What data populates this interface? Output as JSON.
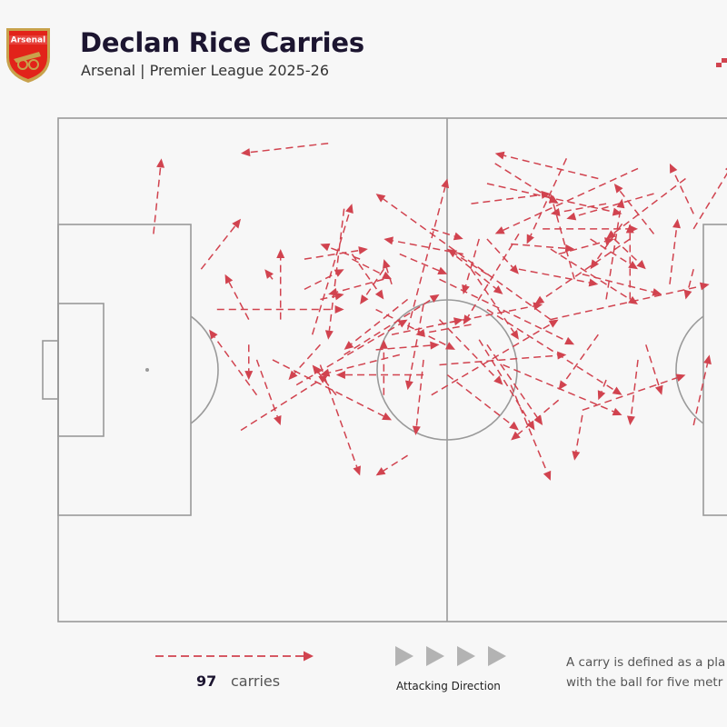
{
  "header": {
    "title": "Declan Rice Carries",
    "subtitle": "Arsenal | Premier League 2025-26",
    "crest_text": "Arsenal"
  },
  "colors": {
    "carry": "#d1434f",
    "pitch_lines": "#9a9a9a",
    "background": "#f7f7f7",
    "arrows": "#b3b3b3",
    "crest_red": "#e2231a",
    "crest_gold": "#c8a24c"
  },
  "legend": {
    "carry_count": "97",
    "carry_label": "carries",
    "direction_label": "Attacking Direction",
    "footnote_line1": "A carry is defined as a pla",
    "footnote_line2": "with the ball for five metr"
  },
  "chart_data": {
    "type": "arrow-map",
    "pitch": {
      "length": 100,
      "width": 100,
      "length_shown": 87
    },
    "carries": [
      [
        12,
        23,
        13,
        8
      ],
      [
        34,
        5,
        23,
        7
      ],
      [
        44,
        42,
        49,
        12
      ],
      [
        32,
        43,
        37,
        17
      ],
      [
        65,
        32,
        62,
        15
      ],
      [
        80,
        19,
        77,
        9
      ],
      [
        52,
        17,
        62,
        15
      ],
      [
        62,
        40,
        40,
        15
      ],
      [
        38,
        28,
        33,
        25
      ],
      [
        33,
        36,
        36,
        35
      ],
      [
        31,
        34,
        36,
        30
      ],
      [
        41,
        30,
        38,
        37
      ],
      [
        37,
        28,
        42,
        32
      ],
      [
        20,
        38,
        36,
        38
      ],
      [
        18,
        30,
        23,
        20
      ],
      [
        25,
        55,
        19,
        42
      ],
      [
        24,
        45,
        24,
        52
      ],
      [
        23,
        62,
        34,
        51
      ],
      [
        27,
        48,
        42,
        60
      ],
      [
        41,
        55,
        41,
        44
      ],
      [
        40,
        38,
        50,
        46
      ],
      [
        46,
        48,
        45,
        63
      ],
      [
        46,
        37,
        44,
        54
      ],
      [
        47,
        55,
        63,
        40
      ],
      [
        58,
        30,
        68,
        33
      ],
      [
        61,
        22,
        73,
        22
      ],
      [
        68,
        12,
        55,
        7
      ],
      [
        69,
        17,
        62,
        19
      ],
      [
        75,
        15,
        64,
        20
      ],
      [
        73,
        10,
        55,
        23
      ],
      [
        79,
        12,
        69,
        24
      ],
      [
        72,
        24,
        60,
        37
      ],
      [
        75,
        23,
        70,
        13
      ],
      [
        71,
        21,
        67,
        30
      ],
      [
        62,
        40,
        82,
        33
      ],
      [
        66,
        31,
        76,
        35
      ],
      [
        64,
        8,
        59,
        25
      ],
      [
        54,
        13,
        71,
        19
      ],
      [
        58,
        23,
        51,
        41
      ],
      [
        55,
        9,
        63,
        17
      ],
      [
        48,
        40,
        56,
        53
      ],
      [
        49,
        51,
        58,
        62
      ],
      [
        53,
        44,
        60,
        62
      ],
      [
        46,
        51,
        35,
        51
      ],
      [
        43,
        47,
        33,
        51
      ],
      [
        33,
        45,
        29,
        52
      ],
      [
        30,
        53,
        44,
        40
      ],
      [
        36,
        47,
        48,
        35
      ],
      [
        42,
        43,
        51,
        40
      ],
      [
        51,
        27,
        41,
        24
      ],
      [
        54,
        31,
        49,
        26
      ],
      [
        63,
        27,
        70,
        24
      ],
      [
        70,
        24,
        74,
        30
      ],
      [
        72,
        36,
        72,
        21
      ],
      [
        80,
        22,
        85,
        9
      ],
      [
        77,
        33,
        78,
        20
      ],
      [
        69,
        36,
        71,
        16
      ],
      [
        67,
        24,
        73,
        30
      ],
      [
        80,
        30,
        79,
        36
      ],
      [
        74,
        45,
        76,
        55
      ],
      [
        80,
        61,
        82,
        47
      ],
      [
        63,
        56,
        57,
        64
      ],
      [
        73,
        48,
        72,
        61
      ],
      [
        66,
        58,
        79,
        51
      ],
      [
        68,
        43,
        63,
        54
      ],
      [
        56,
        49,
        71,
        59
      ],
      [
        54,
        38,
        71,
        55
      ],
      [
        44,
        67,
        40,
        71
      ],
      [
        33,
        49,
        38,
        71
      ],
      [
        36,
        18,
        34,
        44
      ],
      [
        54,
        24,
        58,
        31
      ],
      [
        49,
        26,
        56,
        35
      ],
      [
        57,
        25,
        65,
        26
      ],
      [
        47,
        22,
        51,
        24
      ],
      [
        25,
        48,
        28,
        61
      ],
      [
        35,
        55,
        32,
        49
      ],
      [
        40,
        46,
        48,
        45
      ],
      [
        24,
        40,
        21,
        31
      ],
      [
        53,
        24,
        51,
        35
      ],
      [
        62,
        26,
        73,
        37
      ],
      [
        52,
        30,
        58,
        44
      ],
      [
        43,
        27,
        49,
        31
      ],
      [
        52,
        41,
        45,
        43
      ],
      [
        48,
        49,
        64,
        47
      ],
      [
        37,
        27,
        41,
        36
      ],
      [
        31,
        28,
        39,
        26
      ],
      [
        44,
        36,
        36,
        46
      ],
      [
        48,
        41,
        61,
        37
      ],
      [
        28,
        40,
        28,
        26
      ],
      [
        27,
        32,
        26,
        30
      ],
      [
        41,
        32,
        34,
        35
      ],
      [
        48,
        32,
        65,
        45
      ],
      [
        57,
        53,
        62,
        72
      ],
      [
        54,
        45,
        61,
        61
      ],
      [
        69,
        52,
        68,
        56
      ],
      [
        66,
        59,
        65,
        68
      ],
      [
        42,
        33,
        41,
        28
      ]
    ]
  }
}
